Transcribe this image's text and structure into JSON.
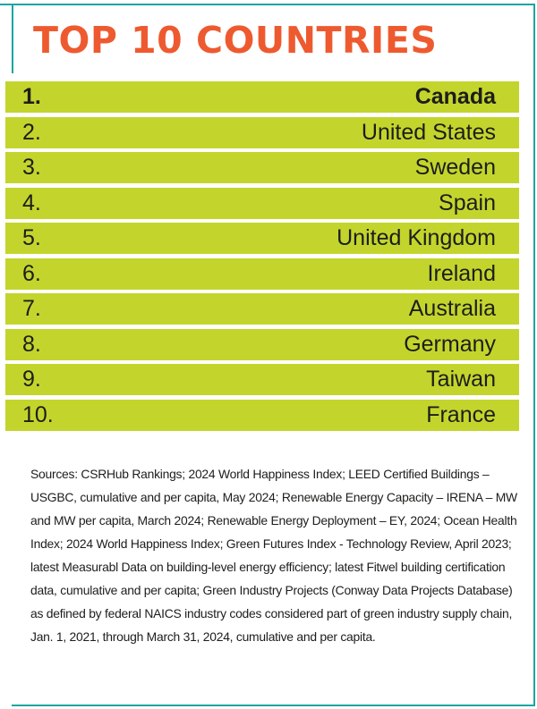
{
  "colors": {
    "teal": "#1aa6a0",
    "orange": "#ee5a2f",
    "lime": "#c3d52c"
  },
  "title": "TOP 10 COUNTRIES",
  "rankings": [
    {
      "rank": "1.",
      "country": "Canada"
    },
    {
      "rank": "2.",
      "country": "United States"
    },
    {
      "rank": "3.",
      "country": "Sweden"
    },
    {
      "rank": "4.",
      "country": "Spain"
    },
    {
      "rank": "5.",
      "country": "United Kingdom"
    },
    {
      "rank": "6.",
      "country": "Ireland"
    },
    {
      "rank": "7.",
      "country": "Australia"
    },
    {
      "rank": "8.",
      "country": "Germany"
    },
    {
      "rank": "9.",
      "country": "Taiwan"
    },
    {
      "rank": "10.",
      "country": "France"
    }
  ],
  "sources": "Sources: CSRHub Rankings; 2024 World Happiness Index; LEED Certified Buildings – USGBC, cumulative and per capita, May 2024; Renewable Energy Capacity – IRENA – MW and MW per capita, March 2024; Renewable Energy Deployment – EY, 2024; Ocean Health Index; 2024 World Happiness Index; Green Futures Index - Technology Review, April 2023; latest Measurabl Data on building-level energy efficiency; latest Fitwel building certification data, cumulative and per capita; Green Industry Projects (Conway Data Projects Database) as defined by federal NAICS industry codes considered part of green industry supply chain, Jan. 1, 2021, through March 31, 2024, cumulative and per capita."
}
